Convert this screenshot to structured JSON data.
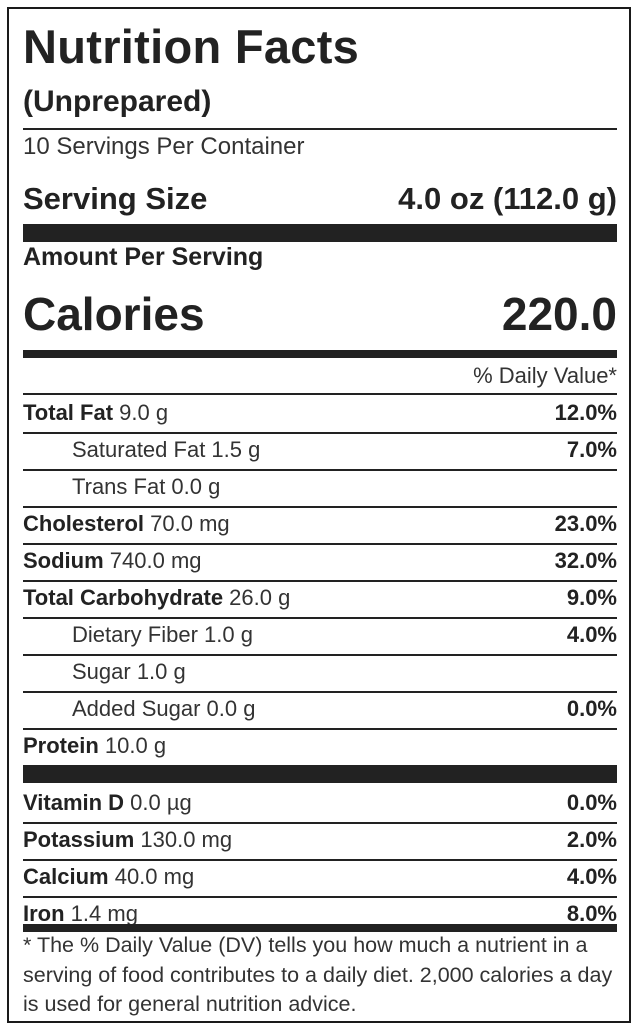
{
  "title": "Nutrition Facts",
  "subtitle": "(Unprepared)",
  "servings_per_container": "10 Servings Per Container",
  "serving_size": {
    "label": "Serving Size",
    "value": "4.0 oz (112.0 g)"
  },
  "amount_per_serving": "Amount Per Serving",
  "calories": {
    "label": "Calories",
    "value": "220.0"
  },
  "daily_value_header": "% Daily Value*",
  "nutrients": [
    {
      "name": "Total Fat",
      "amount": " 9.0 g",
      "dv": "12.0%"
    },
    {
      "name": "Saturated Fat 1.5 g",
      "dv": "7.0%"
    },
    {
      "name": "Trans Fat 0.0 g",
      "dv": ""
    },
    {
      "name": "Cholesterol",
      "amount": " 70.0 mg",
      "dv": "23.0%"
    },
    {
      "name": "Sodium",
      "amount": " 740.0 mg",
      "dv": "32.0%"
    },
    {
      "name": "Total Carbohydrate",
      "amount": " 26.0 g",
      "dv": "9.0%"
    },
    {
      "name": "Dietary Fiber 1.0 g",
      "dv": "4.0%"
    },
    {
      "name": "Sugar 1.0 g",
      "dv": ""
    },
    {
      "name": "Added Sugar 0.0 g",
      "dv": "0.0%"
    },
    {
      "name": "Protein",
      "amount": " 10.0 g",
      "dv": ""
    }
  ],
  "minerals": [
    {
      "name": "Vitamin D",
      "amount": " 0.0 µg",
      "dv": "0.0%"
    },
    {
      "name": "Potassium",
      "amount": " 130.0 mg",
      "dv": "2.0%"
    },
    {
      "name": "Calcium",
      "amount": " 40.0 mg",
      "dv": "4.0%"
    },
    {
      "name": "Iron",
      "amount": " 1.4 mg",
      "dv": "8.0%"
    }
  ],
  "footnote": "* The % Daily Value (DV) tells you how much a nutrient in a serving of food contributes to a daily diet. 2,000 calories a day is used for general nutrition advice."
}
